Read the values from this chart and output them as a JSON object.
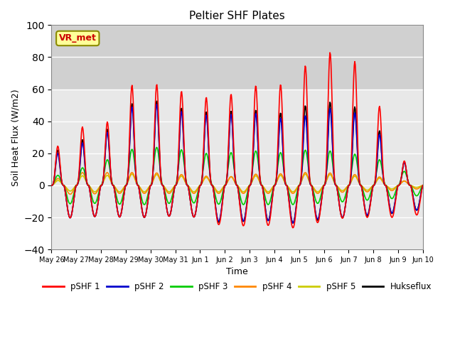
{
  "title": "Peltier SHF Plates",
  "ylabel": "Soil Heat Flux (W/m2)",
  "xlabel": "Time",
  "ylim": [
    -40,
    100
  ],
  "background_color": "#ffffff",
  "plot_bg_color": "#e8e8e8",
  "shaded_region_color": "#d0d0d0",
  "grid_color": "#ffffff",
  "annotation_text": "VR_met",
  "annotation_bg": "#ffff99",
  "annotation_border": "#8b8b00",
  "annotation_text_color": "#cc0000",
  "series": {
    "pSHF 1": {
      "color": "#ff0000",
      "lw": 1.2
    },
    "pSHF 2": {
      "color": "#0000cc",
      "lw": 1.2
    },
    "pSHF 3": {
      "color": "#00cc00",
      "lw": 1.2
    },
    "pSHF 4": {
      "color": "#ff8800",
      "lw": 1.2
    },
    "pSHF 5": {
      "color": "#cccc00",
      "lw": 1.2
    },
    "Hukseflux": {
      "color": "#000000",
      "lw": 1.2
    }
  },
  "xtick_labels": [
    "May 26",
    "May 27",
    "May 28",
    "May 29",
    "May 30",
    "May 31",
    "Jun 1",
    "Jun 2",
    "Jun 3",
    "Jun 4",
    "Jun 5",
    "Jun 6",
    "Jun 7",
    "Jun 8",
    "Jun 9",
    "Jun 10"
  ],
  "num_days": 15,
  "points_per_day": 48
}
